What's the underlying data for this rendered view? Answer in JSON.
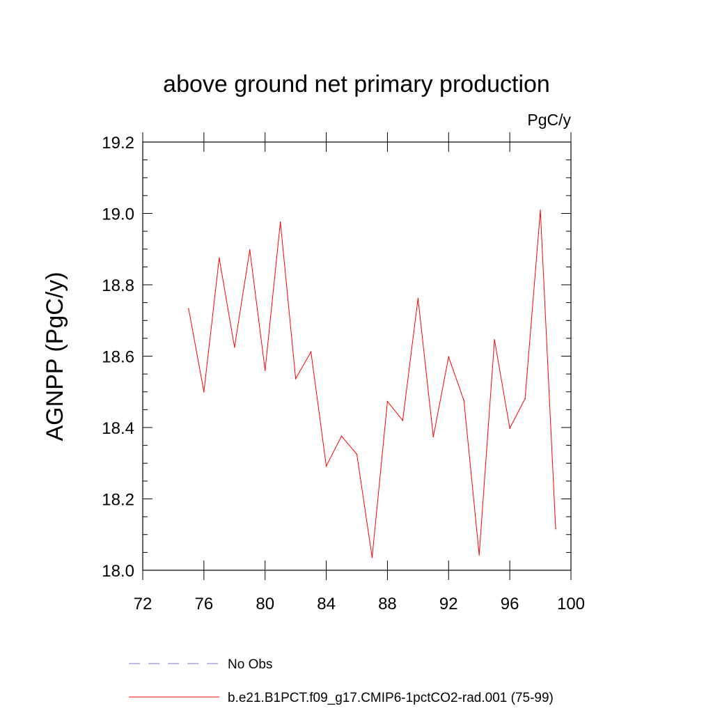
{
  "chart_data": {
    "type": "line",
    "title": "above ground net primary production",
    "units_label": "PgC/y",
    "ylabel": "AGNPP  (PgC/y)",
    "xlabel": "",
    "xlim": [
      72,
      100
    ],
    "ylim": [
      18.0,
      19.2
    ],
    "x_ticks": [
      72,
      76,
      80,
      84,
      88,
      92,
      96,
      100
    ],
    "x_tick_labels": [
      "72",
      "76",
      "80",
      "84",
      "88",
      "92",
      "96",
      "100"
    ],
    "y_ticks": [
      18.0,
      18.2,
      18.4,
      18.6,
      18.8,
      19.0,
      19.2
    ],
    "y_tick_labels": [
      "18.0",
      "18.2",
      "18.4",
      "18.6",
      "18.8",
      "19.0",
      "19.2"
    ],
    "grid": false,
    "legend_position": "bottom",
    "series": [
      {
        "name": "No Obs",
        "color": "#7b76c4",
        "dashed": true,
        "x": [],
        "y": []
      },
      {
        "name": "b.e21.B1PCT.f09_g17.CMIP6-1pctCO2-rad.001 (75-99)",
        "color": "#ff0000",
        "dashed": false,
        "x": [
          75,
          76,
          77,
          78,
          79,
          80,
          81,
          82,
          83,
          84,
          85,
          86,
          87,
          88,
          89,
          90,
          91,
          92,
          93,
          94,
          95,
          96,
          97,
          98,
          99
        ],
        "y": [
          18.733,
          18.5,
          18.875,
          18.625,
          18.898,
          18.56,
          18.976,
          18.537,
          18.612,
          18.292,
          18.376,
          18.325,
          18.036,
          18.473,
          18.42,
          18.762,
          18.374,
          18.598,
          18.476,
          18.043,
          18.646,
          18.398,
          18.481,
          19.009,
          18.116
        ]
      }
    ]
  }
}
